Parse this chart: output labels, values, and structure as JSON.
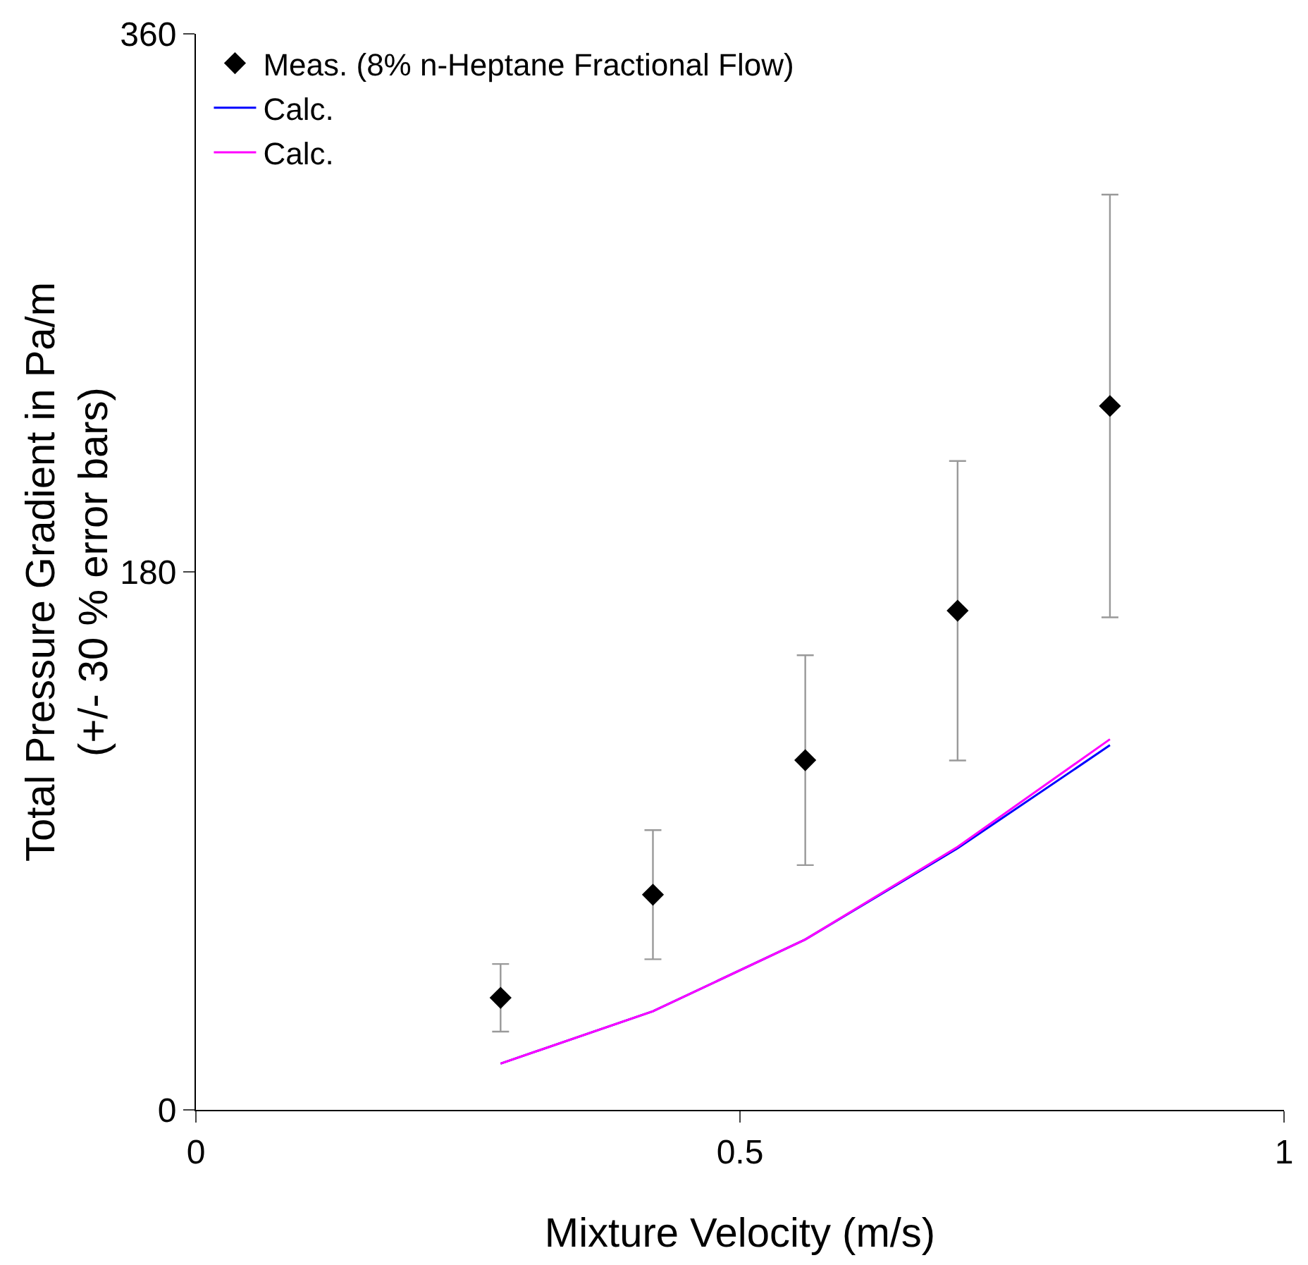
{
  "chart_data": {
    "type": "scatter",
    "xlabel": "Mixture Velocity (m/s)",
    "ylabel": "Total Pressure Gradient in Pa/m\n(+/- 30 % error bars)",
    "xlim": [
      0,
      1
    ],
    "xticks": [
      0,
      0.5,
      1
    ],
    "ylim": [
      0,
      360
    ],
    "yticks": [
      0,
      180,
      360
    ],
    "grid": false,
    "legend": "top left",
    "series": [
      {
        "name": "Meas. (8% n-Heptane Fractional Flow)",
        "marker": "diamond",
        "color": "#000000",
        "x": [
          0.28,
          0.42,
          0.56,
          0.7,
          0.84
        ],
        "values": [
          37.5,
          72,
          117,
          167,
          235.5
        ],
        "errors": [
          11.3,
          21.6,
          35.1,
          50.1,
          70.7
        ]
      },
      {
        "name": "Calc.",
        "type": "line",
        "color": "#0000ff",
        "x": [
          0.28,
          0.42,
          0.56,
          0.7,
          0.84
        ],
        "values": [
          15.5,
          33,
          57,
          87.5,
          122
        ]
      },
      {
        "name": "Calc.",
        "type": "line",
        "color": "#ff00ff",
        "x": [
          0.28,
          0.42,
          0.56,
          0.7,
          0.84
        ],
        "values": [
          15.5,
          33,
          57,
          88,
          124
        ]
      }
    ]
  }
}
